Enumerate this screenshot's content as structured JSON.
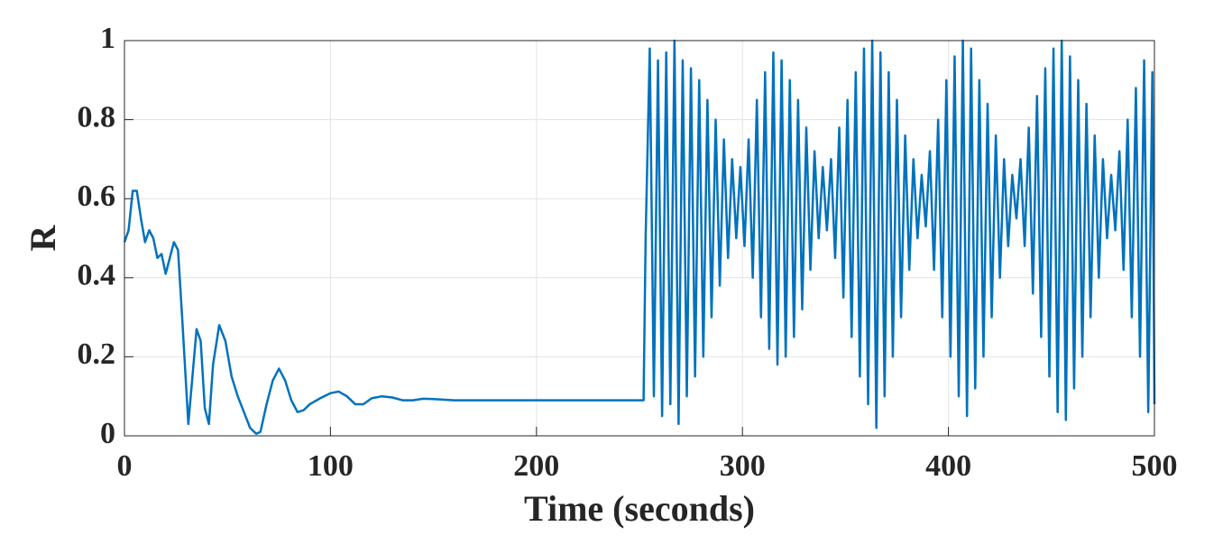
{
  "chart_data": {
    "type": "line",
    "xlabel": "Time (seconds)",
    "ylabel": "R",
    "color": "#0072bd",
    "grid": true,
    "xlim": [
      0,
      500
    ],
    "ylim": [
      0,
      1
    ],
    "xticks": [
      0,
      100,
      200,
      300,
      400,
      500
    ],
    "yticks": [
      0,
      0.2,
      0.4,
      0.6,
      0.8,
      1
    ],
    "x": [
      0,
      2,
      4,
      6,
      8,
      10,
      12,
      14,
      16,
      18,
      20,
      22,
      24,
      26,
      28,
      30,
      31,
      33,
      35,
      37,
      39,
      41,
      43,
      46,
      49,
      52,
      55,
      58,
      61,
      64,
      66,
      69,
      72,
      75,
      78,
      81,
      84,
      87,
      90,
      95,
      100,
      104,
      108,
      112,
      116,
      120,
      125,
      130,
      135,
      140,
      145,
      150,
      160,
      170,
      200,
      230,
      250,
      252,
      253,
      255,
      257,
      259,
      261,
      263,
      265,
      267,
      269,
      271,
      273,
      275,
      277,
      279,
      281,
      283,
      285,
      287,
      289,
      291,
      293,
      295,
      297,
      299,
      301,
      303,
      305,
      307,
      309,
      311,
      313,
      315,
      317,
      319,
      321,
      323,
      325,
      327,
      329,
      331,
      333,
      335,
      337,
      339,
      341,
      343,
      345,
      347,
      349,
      351,
      353,
      355,
      357,
      359,
      361,
      363,
      365,
      367,
      369,
      371,
      373,
      375,
      377,
      379,
      381,
      383,
      385,
      387,
      389,
      391,
      393,
      395,
      397,
      399,
      401,
      403,
      405,
      407,
      409,
      411,
      413,
      415,
      417,
      419,
      421,
      423,
      425,
      427,
      429,
      431,
      433,
      435,
      437,
      439,
      441,
      443,
      445,
      447,
      449,
      451,
      453,
      455,
      457,
      459,
      461,
      463,
      465,
      467,
      469,
      471,
      473,
      475,
      477,
      479,
      481,
      483,
      485,
      487,
      489,
      491,
      493,
      495,
      497,
      499,
      500
    ],
    "values": [
      0.49,
      0.52,
      0.62,
      0.62,
      0.55,
      0.49,
      0.52,
      0.5,
      0.45,
      0.46,
      0.41,
      0.45,
      0.49,
      0.47,
      0.3,
      0.12,
      0.03,
      0.15,
      0.27,
      0.24,
      0.07,
      0.03,
      0.18,
      0.28,
      0.24,
      0.15,
      0.1,
      0.06,
      0.02,
      0.005,
      0.01,
      0.08,
      0.14,
      0.17,
      0.14,
      0.09,
      0.06,
      0.065,
      0.08,
      0.095,
      0.108,
      0.112,
      0.1,
      0.08,
      0.08,
      0.095,
      0.1,
      0.097,
      0.09,
      0.09,
      0.094,
      0.093,
      0.09,
      0.09,
      0.09,
      0.09,
      0.09,
      0.09,
      0.5,
      0.98,
      0.1,
      0.95,
      0.05,
      0.97,
      0.08,
      1.0,
      0.03,
      0.95,
      0.1,
      0.93,
      0.15,
      0.9,
      0.2,
      0.85,
      0.3,
      0.8,
      0.38,
      0.75,
      0.45,
      0.7,
      0.5,
      0.68,
      0.48,
      0.75,
      0.4,
      0.85,
      0.3,
      0.92,
      0.22,
      0.97,
      0.18,
      0.95,
      0.2,
      0.9,
      0.25,
      0.85,
      0.32,
      0.78,
      0.42,
      0.72,
      0.5,
      0.68,
      0.52,
      0.7,
      0.45,
      0.78,
      0.35,
      0.85,
      0.25,
      0.92,
      0.15,
      0.98,
      0.08,
      1.0,
      0.02,
      0.97,
      0.1,
      0.92,
      0.2,
      0.85,
      0.3,
      0.76,
      0.42,
      0.7,
      0.5,
      0.66,
      0.53,
      0.72,
      0.42,
      0.8,
      0.3,
      0.9,
      0.2,
      0.96,
      0.1,
      1.0,
      0.05,
      0.98,
      0.12,
      0.9,
      0.2,
      0.84,
      0.3,
      0.76,
      0.4,
      0.7,
      0.48,
      0.66,
      0.55,
      0.7,
      0.48,
      0.78,
      0.36,
      0.86,
      0.25,
      0.93,
      0.15,
      0.98,
      0.06,
      1.0,
      0.04,
      0.96,
      0.12,
      0.9,
      0.2,
      0.84,
      0.3,
      0.76,
      0.4,
      0.7,
      0.5,
      0.66,
      0.52,
      0.72,
      0.42,
      0.8,
      0.3,
      0.88,
      0.2,
      0.95,
      0.06,
      0.92,
      0.08
    ]
  }
}
